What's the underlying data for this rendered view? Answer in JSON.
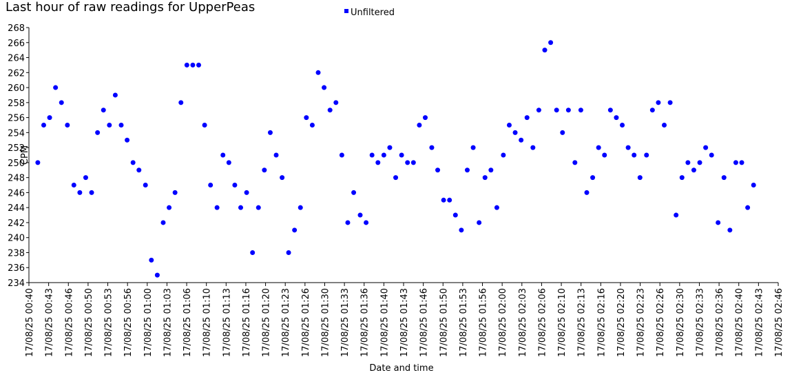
{
  "chart_data": {
    "type": "scatter",
    "title": "Last hour of raw readings for UpperPeas",
    "x_label": "Date and time",
    "y_label": "CPM",
    "legend": "top",
    "series": [
      {
        "name": "Unfiltered",
        "color": "#0000ff",
        "x": [
          41.5,
          42.5,
          43.5,
          44.5,
          45.5,
          46.5,
          47.6,
          48.6,
          49.6,
          50.6,
          51.6,
          52.6,
          53.6,
          54.6,
          55.6,
          56.6,
          57.6,
          58.6,
          59.7,
          60.7,
          61.7,
          62.7,
          63.7,
          64.7,
          65.7,
          66.7,
          67.7,
          68.7,
          69.7,
          70.7,
          71.8,
          72.8,
          73.8,
          74.8,
          75.8,
          76.8,
          77.8,
          78.8,
          79.8,
          80.8,
          81.8,
          82.8,
          83.9,
          84.9,
          85.9,
          86.9,
          87.9,
          88.9,
          89.9,
          90.9,
          91.9,
          92.9,
          93.9,
          94.9,
          96.0,
          97.0,
          98.0,
          99.0,
          100.0,
          101.0,
          102.0,
          103.0,
          104.0,
          105.0,
          106.0,
          107.0,
          108.1,
          109.1,
          110.1,
          111.1,
          112.1,
          113.1,
          114.1,
          115.1,
          116.1,
          117.1,
          118.1,
          119.1,
          120.2,
          121.2,
          122.2,
          123.2,
          124.2,
          125.2,
          126.2,
          127.2,
          128.2,
          129.2,
          130.2,
          131.2,
          132.3,
          133.3,
          134.3,
          135.3,
          136.3,
          137.3,
          138.3,
          139.3,
          140.3,
          141.3,
          142.3,
          143.3,
          144.4,
          145.4,
          146.4,
          147.4,
          148.4,
          149.4,
          150.4,
          151.4,
          152.4,
          153.4,
          154.4,
          155.4,
          156.5,
          157.5,
          158.5,
          159.5,
          160.5,
          161.5,
          162.5
        ],
        "values": [
          250,
          255,
          256,
          260,
          258,
          255,
          247,
          246,
          248,
          246,
          254,
          257,
          255,
          259,
          255,
          253,
          250,
          249,
          247,
          237,
          235,
          242,
          244,
          246,
          258,
          263,
          263,
          263,
          255,
          247,
          244,
          251,
          250,
          247,
          244,
          246,
          238,
          244,
          249,
          254,
          251,
          248,
          238,
          241,
          244,
          256,
          255,
          262,
          260,
          257,
          258,
          251,
          242,
          246,
          243,
          242,
          251,
          250,
          251,
          252,
          248,
          251,
          250,
          250,
          255,
          256,
          252,
          249,
          245,
          245,
          243,
          241,
          249,
          252,
          242,
          248,
          249,
          244,
          251,
          255,
          254,
          253,
          256,
          252,
          257,
          265,
          266,
          257,
          254,
          257,
          250,
          257,
          246,
          248,
          252,
          251,
          257,
          256,
          255,
          252,
          251,
          248,
          251,
          257,
          258,
          255,
          258,
          243,
          248,
          250,
          249,
          250,
          252,
          251,
          242,
          248,
          241,
          250,
          250,
          244,
          247
        ]
      }
    ],
    "ylim": [
      234,
      268
    ],
    "yticks": [
      234,
      236,
      238,
      240,
      242,
      244,
      246,
      248,
      250,
      252,
      254,
      256,
      258,
      260,
      262,
      264,
      266,
      268
    ],
    "xlim": [
      40,
      166.667
    ],
    "xticks": [
      {
        "value": 40,
        "label": "17/08/25 00:40"
      },
      {
        "value": 43.333,
        "label": "17/08/25 00:43"
      },
      {
        "value": 46.667,
        "label": "17/08/25 00:46"
      },
      {
        "value": 50,
        "label": "17/08/25 00:50"
      },
      {
        "value": 53.333,
        "label": "17/08/25 00:53"
      },
      {
        "value": 56.667,
        "label": "17/08/25 00:56"
      },
      {
        "value": 60,
        "label": "17/08/25 01:00"
      },
      {
        "value": 63.333,
        "label": "17/08/25 01:03"
      },
      {
        "value": 66.667,
        "label": "17/08/25 01:06"
      },
      {
        "value": 70,
        "label": "17/08/25 01:10"
      },
      {
        "value": 73.333,
        "label": "17/08/25 01:13"
      },
      {
        "value": 76.667,
        "label": "17/08/25 01:16"
      },
      {
        "value": 80,
        "label": "17/08/25 01:20"
      },
      {
        "value": 83.333,
        "label": "17/08/25 01:23"
      },
      {
        "value": 86.667,
        "label": "17/08/25 01:26"
      },
      {
        "value": 90,
        "label": "17/08/25 01:30"
      },
      {
        "value": 93.333,
        "label": "17/08/25 01:33"
      },
      {
        "value": 96.667,
        "label": "17/08/25 01:36"
      },
      {
        "value": 100,
        "label": "17/08/25 01:40"
      },
      {
        "value": 103.333,
        "label": "17/08/25 01:43"
      },
      {
        "value": 106.667,
        "label": "17/08/25 01:46"
      },
      {
        "value": 110,
        "label": "17/08/25 01:50"
      },
      {
        "value": 113.333,
        "label": "17/08/25 01:53"
      },
      {
        "value": 116.667,
        "label": "17/08/25 01:56"
      },
      {
        "value": 120,
        "label": "17/08/25 02:00"
      },
      {
        "value": 123.333,
        "label": "17/08/25 02:03"
      },
      {
        "value": 126.667,
        "label": "17/08/25 02:06"
      },
      {
        "value": 130,
        "label": "17/08/25 02:10"
      },
      {
        "value": 133.333,
        "label": "17/08/25 02:13"
      },
      {
        "value": 136.667,
        "label": "17/08/25 02:16"
      },
      {
        "value": 140,
        "label": "17/08/25 02:20"
      },
      {
        "value": 143.333,
        "label": "17/08/25 02:23"
      },
      {
        "value": 146.667,
        "label": "17/08/25 02:26"
      },
      {
        "value": 150,
        "label": "17/08/25 02:30"
      },
      {
        "value": 153.333,
        "label": "17/08/25 02:33"
      },
      {
        "value": 156.667,
        "label": "17/08/25 02:36"
      },
      {
        "value": 160,
        "label": "17/08/25 02:40"
      },
      {
        "value": 163.333,
        "label": "17/08/25 02:43"
      },
      {
        "value": 166.667,
        "label": "17/08/25 02:46"
      }
    ]
  }
}
